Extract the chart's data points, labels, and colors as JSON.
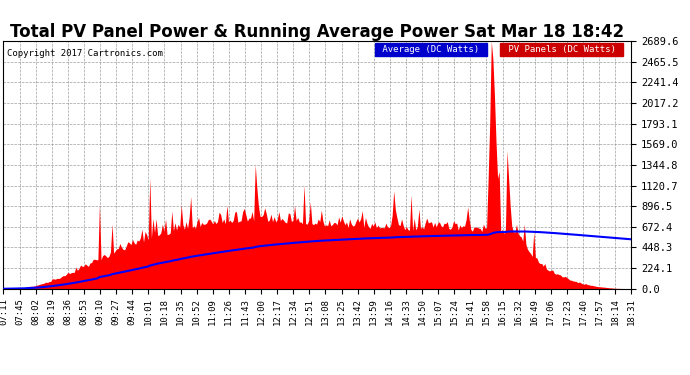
{
  "title": "Total PV Panel Power & Running Average Power Sat Mar 18 18:42",
  "copyright": "Copyright 2017 Cartronics.com",
  "legend_average": "Average (DC Watts)",
  "legend_panels": "PV Panels (DC Watts)",
  "legend_average_bg": "#0000cc",
  "legend_panels_bg": "#cc0000",
  "ytick_labels": [
    "0.0",
    "224.1",
    "448.3",
    "672.4",
    "896.5",
    "1120.7",
    "1344.8",
    "1569.0",
    "1793.1",
    "2017.2",
    "2241.4",
    "2465.5",
    "2689.6"
  ],
  "ymax": 2689.6,
  "ymin": 0.0,
  "fill_color": "#ff0000",
  "line_color": "#0000ff",
  "background_color": "#ffffff",
  "grid_color": "#888888",
  "title_fontsize": 12,
  "xtick_fontsize": 6.5,
  "ytick_fontsize": 7.5
}
